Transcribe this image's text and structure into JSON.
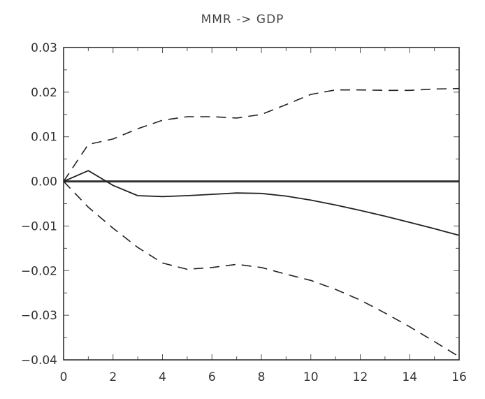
{
  "chart_data": {
    "type": "line",
    "title": "MMR -> GDP",
    "xlabel": "",
    "ylabel": "",
    "xlim": [
      0,
      16
    ],
    "ylim": [
      -0.04,
      0.03
    ],
    "x_ticks": [
      0,
      2,
      4,
      6,
      8,
      10,
      12,
      14,
      16
    ],
    "y_ticks": [
      0.03,
      0.02,
      0.01,
      0.0,
      -0.01,
      -0.02,
      -0.03,
      -0.04
    ],
    "x_tick_labels": [
      "0",
      "2",
      "4",
      "6",
      "8",
      "10",
      "12",
      "14",
      "16"
    ],
    "y_tick_labels": [
      "0.03",
      "0.02",
      "0.01",
      "0.00",
      "−0.01",
      "−0.02",
      "−0.03",
      "−0.04"
    ],
    "grid": false,
    "zero_line": true,
    "x": [
      0,
      1,
      2,
      3,
      4,
      5,
      6,
      7,
      8,
      9,
      10,
      11,
      12,
      13,
      14,
      15,
      16
    ],
    "series": [
      {
        "style": "dashed",
        "values": [
          0.0,
          0.0083,
          0.0095,
          0.0118,
          0.0137,
          0.0145,
          0.0145,
          0.0142,
          0.015,
          0.0172,
          0.0195,
          0.0205,
          0.0205,
          0.0204,
          0.0204,
          0.0207,
          0.0208
        ]
      },
      {
        "style": "solid",
        "values": [
          0.0,
          0.0024,
          -0.0009,
          -0.0032,
          -0.0034,
          -0.0032,
          -0.0029,
          -0.0026,
          -0.0027,
          -0.0033,
          -0.0042,
          -0.0053,
          -0.0065,
          -0.0078,
          -0.0092,
          -0.0106,
          -0.0121
        ]
      },
      {
        "style": "dashed",
        "values": [
          0.0,
          -0.0058,
          -0.0105,
          -0.0148,
          -0.0183,
          -0.0197,
          -0.0193,
          -0.0186,
          -0.0193,
          -0.0208,
          -0.0222,
          -0.0242,
          -0.0266,
          -0.0295,
          -0.0326,
          -0.0359,
          -0.0393
        ]
      }
    ]
  }
}
